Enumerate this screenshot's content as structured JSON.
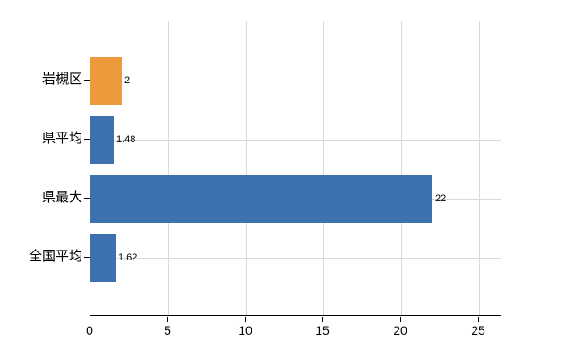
{
  "chart_data": {
    "type": "bar",
    "orientation": "horizontal",
    "title": "",
    "xlabel": "",
    "ylabel": "",
    "categories": [
      "岩槻区",
      "県平均",
      "県最大",
      "全国平均"
    ],
    "values": [
      2,
      1.48,
      22,
      1.62
    ],
    "value_labels": [
      "2",
      "1.48",
      "22",
      "1.62"
    ],
    "series": [
      {
        "name": "値",
        "values": [
          2,
          1.48,
          22,
          1.62
        ]
      }
    ],
    "bar_colors": [
      "#EC9A3C",
      "#3E71B0",
      "#3E71B0",
      "#3E71B0"
    ],
    "highlight_color": "#EC9A3C",
    "base_color": "#3E71B0",
    "x_ticks": [
      0,
      5,
      10,
      15,
      20,
      25
    ],
    "x_tick_labels": [
      "0",
      "5",
      "10",
      "15",
      "20",
      "25"
    ],
    "xlim": [
      0,
      26.5
    ],
    "grid": true,
    "legend": "none",
    "colors": {
      "grid": "#D9D9D9",
      "axis": "#000000",
      "text": "#000000",
      "background": "#FFFFFF"
    }
  }
}
